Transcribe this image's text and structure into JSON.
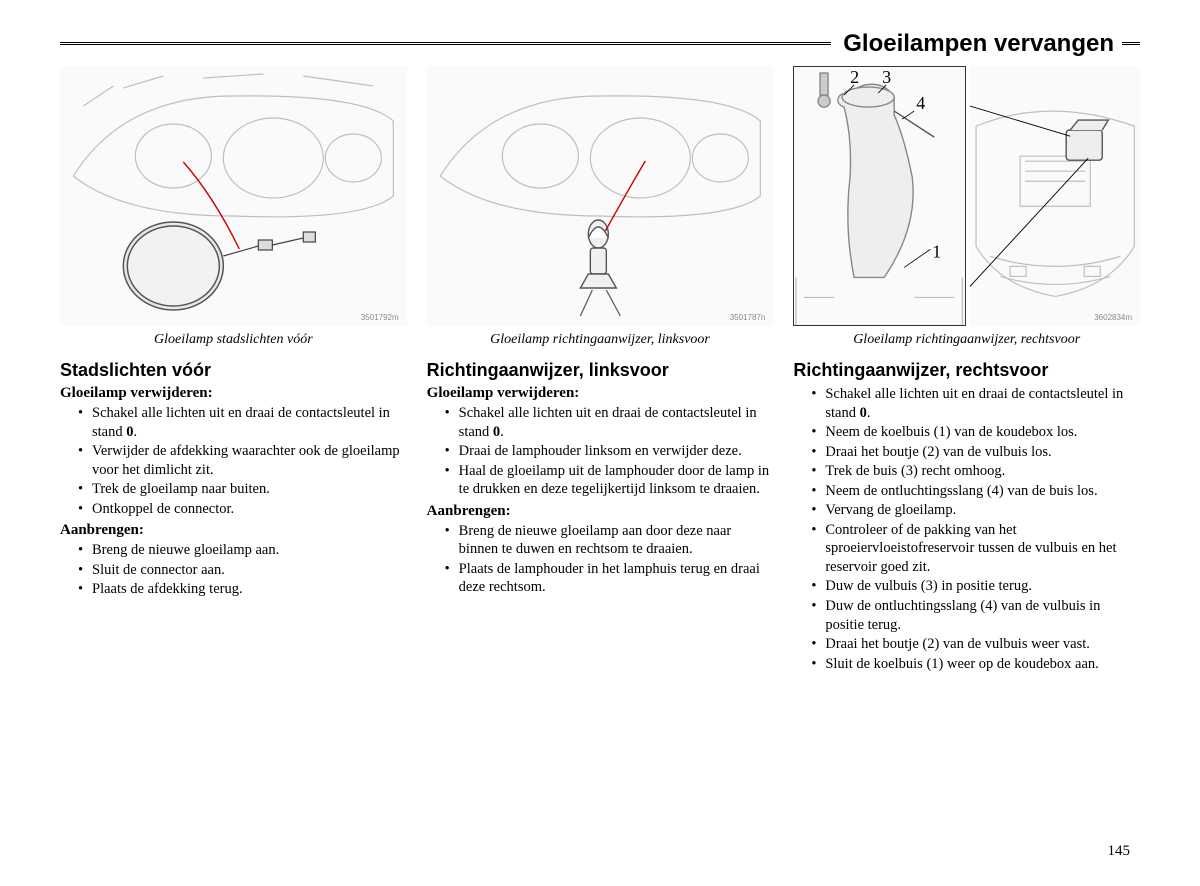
{
  "header": {
    "title": "Gloeilampen vervangen"
  },
  "page_number": "145",
  "columns": [
    {
      "fig_id": "3501792m",
      "caption": "Gloeilamp stadslichten vóór",
      "heading": "Stadslichten vóór",
      "groups": [
        {
          "sub": "Gloeilamp verwijderen:",
          "items": [
            "Schakel alle lichten uit en draai de contactsleutel in stand 0.",
            "Verwijder de afdekking waarachter ook de gloeilamp voor het dimlicht zit.",
            "Trek de gloeilamp naar buiten.",
            "Ontkoppel de connector."
          ]
        },
        {
          "sub": "Aanbrengen:",
          "items": [
            "Breng de nieuwe gloeilamp aan.",
            "Sluit de connector aan.",
            "Plaats de afdekking terug."
          ]
        }
      ]
    },
    {
      "fig_id": "3501787n",
      "caption": "Gloeilamp richtingaanwijzer, linksvoor",
      "heading": "Richtingaanwijzer, linksvoor",
      "groups": [
        {
          "sub": "Gloeilamp verwijderen:",
          "items": [
            "Schakel alle lichten uit en draai de contactsleutel in stand 0.",
            "Draai de lamphouder linksom en verwijder deze.",
            "Haal de gloeilamp uit de lamphouder door de lamp in te drukken en deze tegelijkertijd linksom te draaien."
          ]
        },
        {
          "sub": "Aanbrengen:",
          "items": [
            "Breng de nieuwe gloeilamp aan door deze naar binnen te duwen en rechtsom te draaien.",
            "Plaats de lamphouder in het lamphuis terug en draai deze rechtsom."
          ]
        }
      ]
    },
    {
      "fig_id": "3602834m",
      "caption": "Gloeilamp richtingaanwijzer, rechtsvoor",
      "heading": "Richtingaanwijzer, rechtsvoor",
      "labels": {
        "n1": "1",
        "n2": "2",
        "n3": "3",
        "n4": "4"
      },
      "groups": [
        {
          "sub": "",
          "items": [
            "Schakel alle lichten uit en draai de contactsleutel in stand 0.",
            "Neem de koelbuis (1) van de koudebox los.",
            "Draai het boutje (2) van de vulbuis los.",
            "Trek de buis (3) recht omhoog.",
            "Neem de ontluchtingsslang (4) van de buis los.",
            "Vervang de gloeilamp.",
            "Controleer of de pakking van het sproeiervloeistofreservoir tussen de vulbuis en het reservoir goed zit.",
            "Duw de vulbuis (3) in positie terug.",
            "Duw de ontluchtingsslang (4) van de vulbuis in positie terug.",
            "Draai het boutje (2) van de vulbuis weer vast.",
            "Sluit de koelbuis (1) weer op de koudebox aan."
          ]
        }
      ]
    }
  ]
}
